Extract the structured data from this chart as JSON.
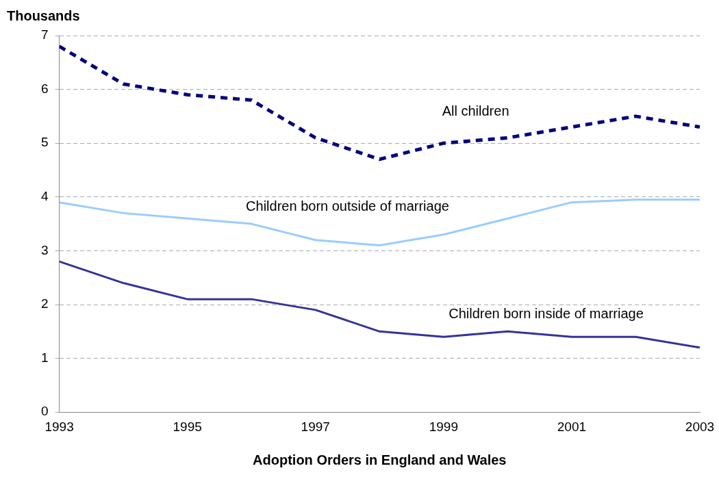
{
  "chart_data": {
    "type": "line",
    "xlabel": "Adoption Orders in England and Wales",
    "ylabel": "Thousands",
    "x": [
      1993,
      1994,
      1995,
      1996,
      1997,
      1998,
      1999,
      2000,
      2001,
      2002,
      2003
    ],
    "xlim": [
      1993,
      2003
    ],
    "xticks": [
      1993,
      1995,
      1997,
      1999,
      2001,
      2003
    ],
    "ylim": [
      0,
      7
    ],
    "yticks": [
      0,
      1,
      2,
      3,
      4,
      5,
      6,
      7
    ],
    "grid": "y",
    "legend": false,
    "marker": "none",
    "series": [
      {
        "name": "All children",
        "color": "#000080",
        "line_style": "dashed",
        "values": [
          6.8,
          6.1,
          5.9,
          5.8,
          5.1,
          4.7,
          5.0,
          5.1,
          5.3,
          5.5,
          5.3
        ]
      },
      {
        "name": "Children born outside of marriage",
        "color": "#99ccff",
        "line_style": "solid",
        "values": [
          3.9,
          3.7,
          3.6,
          3.5,
          3.2,
          3.1,
          3.3,
          3.6,
          3.9,
          3.95,
          3.95
        ]
      },
      {
        "name": "Children born inside of marriage",
        "color": "#333399",
        "line_style": "solid",
        "values": [
          2.8,
          2.4,
          2.1,
          2.1,
          1.9,
          1.5,
          1.4,
          1.5,
          1.4,
          1.4,
          1.2
        ]
      }
    ]
  }
}
